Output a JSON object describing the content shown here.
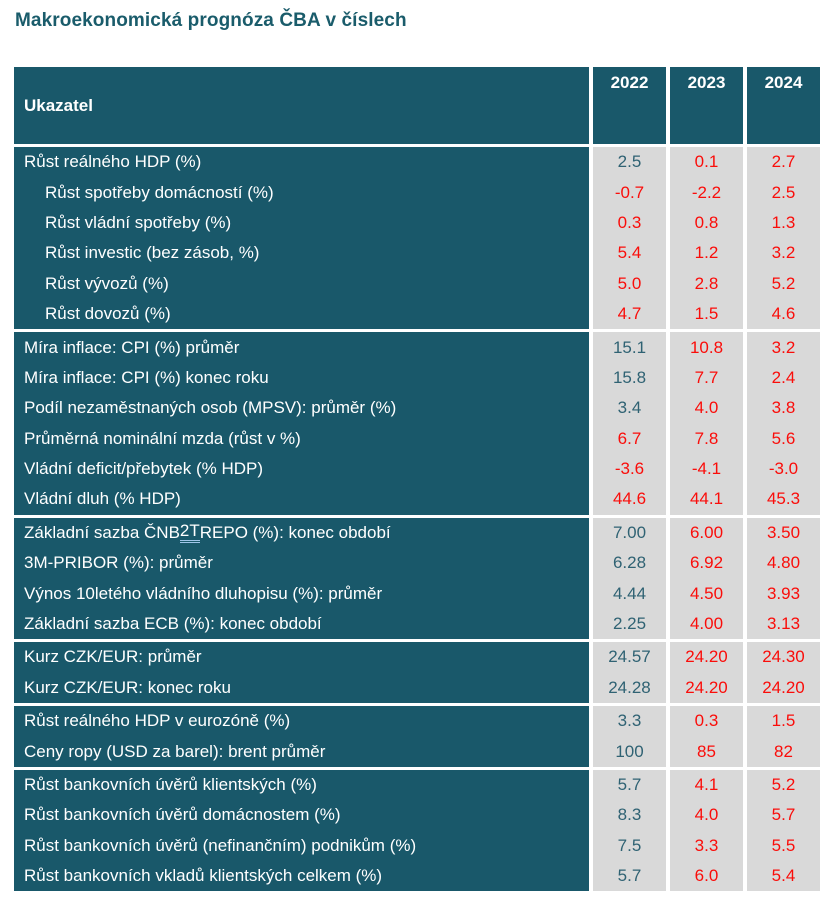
{
  "page": {
    "title": "Makroekonomická prognóza ČBA v číslech"
  },
  "colors": {
    "header_bg": "#19586A",
    "cell_bg": "#D9D9D9",
    "value_teal": "#2F6273",
    "value_red": "#FA0D0A",
    "title": "#1A5C6B",
    "underline": "#9FC5E8"
  },
  "table": {
    "header_label": "Ukazatel",
    "years": [
      "2022",
      "2023",
      "2024"
    ],
    "groups": [
      {
        "rows": [
          {
            "label": "Růst reálného HDP (%)",
            "indent": false,
            "values": [
              "2.5",
              "0.1",
              "2.7"
            ],
            "colors": [
              "teal",
              "red",
              "red"
            ]
          },
          {
            "label": "Růst spotřeby domácností (%)",
            "indent": true,
            "values": [
              "-0.7",
              "-2.2",
              "2.5"
            ],
            "colors": [
              "red",
              "red",
              "red"
            ]
          },
          {
            "label": "Růst vládní spotřeby (%)",
            "indent": true,
            "values": [
              "0.3",
              "0.8",
              "1.3"
            ],
            "colors": [
              "red",
              "red",
              "red"
            ]
          },
          {
            "label": "Růst investic (bez zásob, %)",
            "indent": true,
            "values": [
              "5.4",
              "1.2",
              "3.2"
            ],
            "colors": [
              "red",
              "red",
              "red"
            ]
          },
          {
            "label": "Růst vývozů (%)",
            "indent": true,
            "values": [
              "5.0",
              "2.8",
              "5.2"
            ],
            "colors": [
              "red",
              "red",
              "red"
            ]
          },
          {
            "label": "Růst dovozů (%)",
            "indent": true,
            "values": [
              "4.7",
              "1.5",
              "4.6"
            ],
            "colors": [
              "red",
              "red",
              "red"
            ]
          }
        ]
      },
      {
        "rows": [
          {
            "label": "Míra inflace: CPI (%) průměr",
            "indent": false,
            "values": [
              "15.1",
              "10.8",
              "3.2"
            ],
            "colors": [
              "teal",
              "red",
              "red"
            ]
          },
          {
            "label": "Míra inflace: CPI (%) konec roku",
            "indent": false,
            "values": [
              "15.8",
              "7.7",
              "2.4"
            ],
            "colors": [
              "teal",
              "red",
              "red"
            ]
          },
          {
            "label": "Podíl nezaměstnaných osob (MPSV): průměr (%)",
            "indent": false,
            "values": [
              "3.4",
              "4.0",
              "3.8"
            ],
            "colors": [
              "teal",
              "red",
              "red"
            ]
          },
          {
            "label": "Průměrná nominální mzda (růst v %)",
            "indent": false,
            "values": [
              "6.7",
              "7.8",
              "5.6"
            ],
            "colors": [
              "red",
              "red",
              "red"
            ]
          },
          {
            "label": "Vládní deficit/přebytek (% HDP)",
            "indent": false,
            "values": [
              "-3.6",
              "-4.1",
              "-3.0"
            ],
            "colors": [
              "red",
              "red",
              "red"
            ]
          },
          {
            "label": "Vládní dluh (% HDP)",
            "indent": false,
            "values": [
              "44.6",
              "44.1",
              "45.3"
            ],
            "colors": [
              "red",
              "red",
              "red"
            ]
          }
        ]
      },
      {
        "rows": [
          {
            "label": "Základní sazba ČNB 2T REPO (%): konec období",
            "underline_part": "2T",
            "indent": false,
            "values": [
              "7.00",
              "6.00",
              "3.50"
            ],
            "colors": [
              "teal",
              "red",
              "red"
            ]
          },
          {
            "label": "3M-PRIBOR (%): průměr",
            "indent": false,
            "values": [
              "6.28",
              "6.92",
              "4.80"
            ],
            "colors": [
              "teal",
              "red",
              "red"
            ]
          },
          {
            "label": "Výnos 10letého vládního dluhopisu (%): průměr",
            "indent": false,
            "values": [
              "4.44",
              "4.50",
              "3.93"
            ],
            "colors": [
              "teal",
              "red",
              "red"
            ]
          },
          {
            "label": "Základní sazba ECB (%): konec období",
            "indent": false,
            "values": [
              "2.25",
              "4.00",
              "3.13"
            ],
            "colors": [
              "teal",
              "red",
              "red"
            ]
          }
        ]
      },
      {
        "rows": [
          {
            "label": "Kurz CZK/EUR: průměr",
            "indent": false,
            "values": [
              "24.57",
              "24.20",
              "24.30"
            ],
            "colors": [
              "teal",
              "red",
              "red"
            ]
          },
          {
            "label": "Kurz CZK/EUR: konec roku",
            "indent": false,
            "values": [
              "24.28",
              "24.20",
              "24.20"
            ],
            "colors": [
              "teal",
              "red",
              "red"
            ]
          }
        ]
      },
      {
        "rows": [
          {
            "label": "Růst reálného HDP v eurozóně (%)",
            "indent": false,
            "values": [
              "3.3",
              "0.3",
              "1.5"
            ],
            "colors": [
              "teal",
              "red",
              "red"
            ]
          },
          {
            "label": "Ceny ropy (USD za barel): brent průměr",
            "indent": false,
            "values": [
              "100",
              "85",
              "82"
            ],
            "colors": [
              "teal",
              "red",
              "red"
            ]
          }
        ]
      },
      {
        "rows": [
          {
            "label": "Růst bankovních úvěrů klientských (%)",
            "indent": false,
            "values": [
              "5.7",
              "4.1",
              "5.2"
            ],
            "colors": [
              "teal",
              "red",
              "red"
            ]
          },
          {
            "label": "Růst bankovních úvěrů domácnostem (%)",
            "indent": false,
            "values": [
              "8.3",
              "4.0",
              "5.7"
            ],
            "colors": [
              "teal",
              "red",
              "red"
            ]
          },
          {
            "label": "Růst bankovních úvěrů (nefinančním) podnikům (%)",
            "indent": false,
            "values": [
              "7.5",
              "3.3",
              "5.5"
            ],
            "colors": [
              "teal",
              "red",
              "red"
            ]
          },
          {
            "label": "Růst bankovních vkladů klientských celkem (%)",
            "indent": false,
            "values": [
              "5.7",
              "6.0",
              "5.4"
            ],
            "colors": [
              "teal",
              "red",
              "red"
            ]
          }
        ]
      }
    ]
  }
}
